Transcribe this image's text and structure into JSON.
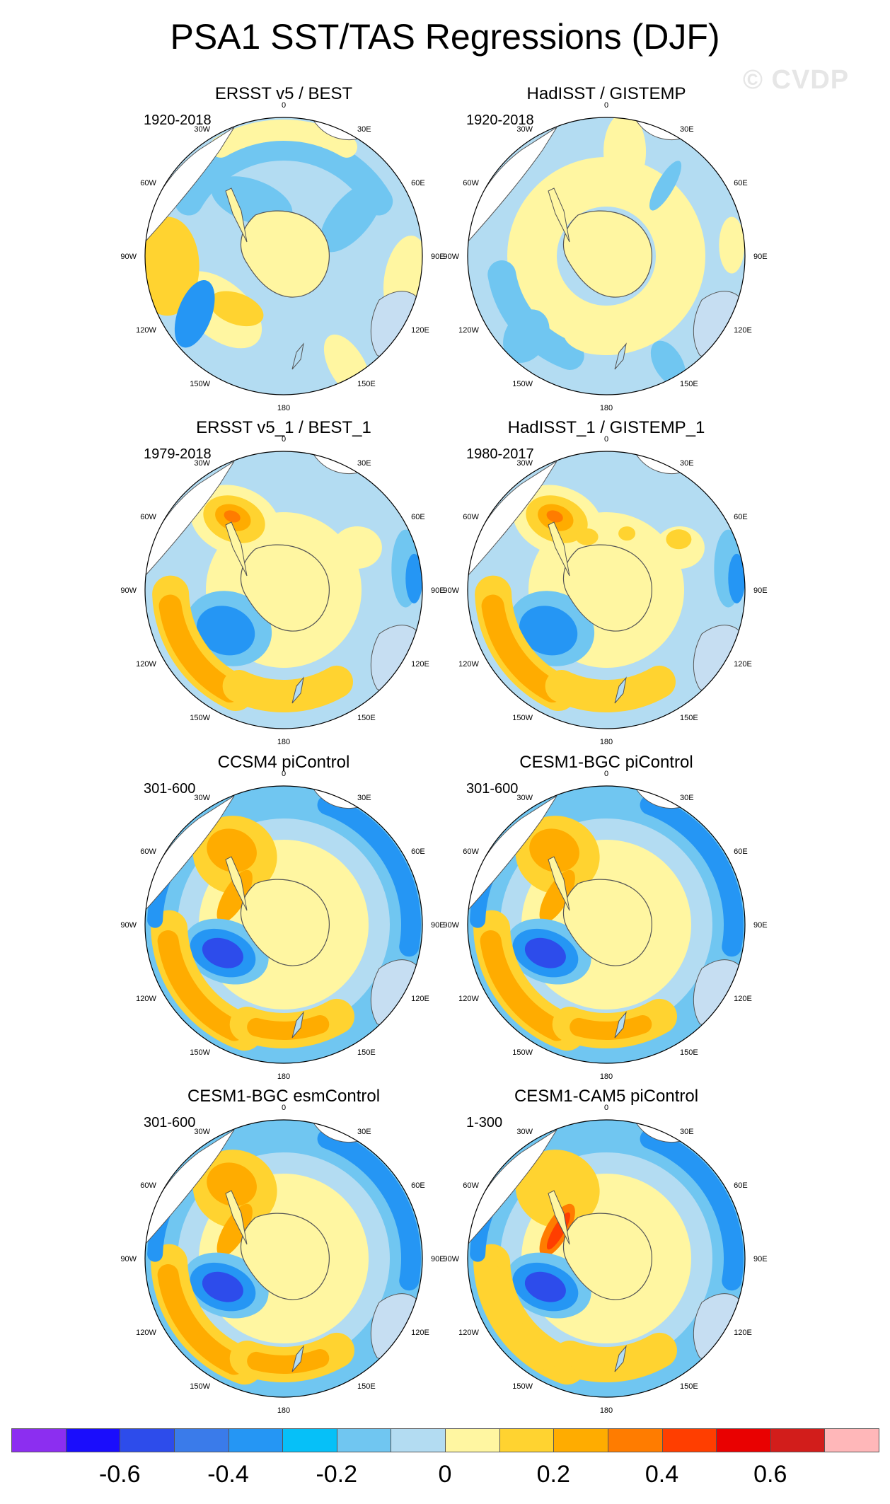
{
  "title": "PSA1 SST/TAS Regressions (DJF)",
  "watermark": "© CVDP",
  "lon_labels": [
    "0",
    "30E",
    "60E",
    "90E",
    "120E",
    "150E",
    "180",
    "150W",
    "120W",
    "90W",
    "60W",
    "30W"
  ],
  "panels": [
    {
      "title": "ERSST v5 / BEST",
      "period": "1920-2018",
      "pattern": "weak-mixed"
    },
    {
      "title": "HadISST / GISTEMP",
      "period": "1920-2018",
      "pattern": "weak-blue"
    },
    {
      "title": "ERSST v5_1 / BEST_1",
      "period": "1979-2018",
      "pattern": "psa"
    },
    {
      "title": "HadISST_1 / GISTEMP_1",
      "period": "1980-2017",
      "pattern": "psa-noisy"
    },
    {
      "title": "CCSM4 piControl",
      "period": "301-600",
      "pattern": "psa-strong"
    },
    {
      "title": "CESM1-BGC piControl",
      "period": "301-600",
      "pattern": "psa-strong"
    },
    {
      "title": "CESM1-BGC esmControl",
      "period": "301-600",
      "pattern": "psa-strong"
    },
    {
      "title": "CESM1-CAM5 piControl",
      "period": "1-300",
      "pattern": "psa-moderate"
    }
  ],
  "colorbar": {
    "colors": [
      "#8c2ef0",
      "#1a0dfc",
      "#2d4ceb",
      "#3a7bea",
      "#2596f4",
      "#06c0f8",
      "#70c6f1",
      "#b3dcf2",
      "#fff6a1",
      "#ffd330",
      "#ffac00",
      "#ff7c00",
      "#ff3e00",
      "#e90101",
      "#d21d1b",
      "#ffb7b9"
    ],
    "labels": [
      "-0.6",
      "-0.4",
      "-0.2",
      "0",
      "0.2",
      "0.4",
      "0.6"
    ]
  }
}
